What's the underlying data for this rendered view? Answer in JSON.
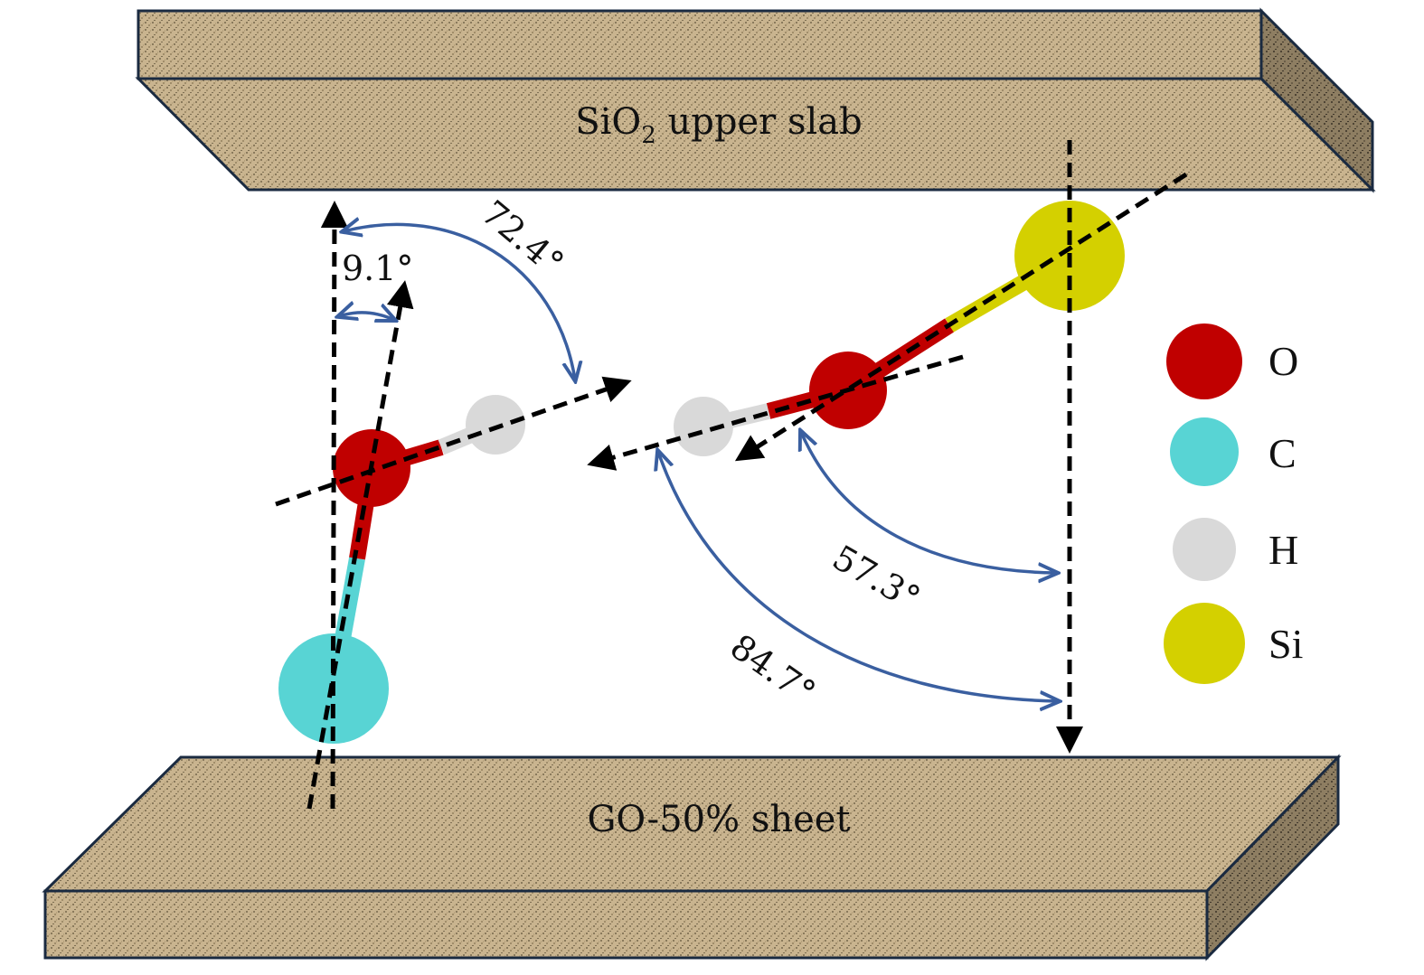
{
  "upper_slab": {
    "label_main": "SiO",
    "label_sub": "2",
    "label_rest": " upper slab",
    "color": "#c9b48f"
  },
  "lower_sheet": {
    "label": "GO-50% sheet",
    "color": "#c9b48f"
  },
  "angles": {
    "a_72": "72.4°",
    "a_9": "9.1°",
    "a_57": "57.3°",
    "a_84": "84.7°"
  },
  "legend": [
    {
      "label": "O",
      "color": "#c00000"
    },
    {
      "label": "C",
      "color": "#58d4d4"
    },
    {
      "label": "H",
      "color": "#d9d9d9"
    },
    {
      "label": "Si",
      "color": "#d4d000"
    }
  ],
  "colors": {
    "arc": "#3a5fa0",
    "axis": "#000000"
  }
}
